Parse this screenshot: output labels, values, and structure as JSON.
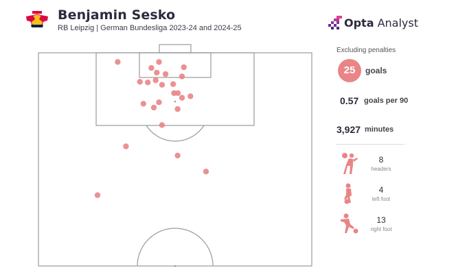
{
  "header": {
    "title": "Benjamin Sesko",
    "subtitle": "RB Leipzig | German Bundesliga 2023-24 and 2024-25",
    "brand": "Opta Analyst",
    "brand_bold": "Opta",
    "brand_rest": " Analyst"
  },
  "stats": {
    "note": "Excluding penalties",
    "goals_value": "25",
    "goals_label": "goals",
    "gp90_value": "0.57",
    "gp90_label": "goals per 90",
    "minutes_value": "3,927",
    "minutes_label": "minutes",
    "body_parts": [
      {
        "count": "8",
        "label": "headers",
        "icon": "header-icon"
      },
      {
        "count": "4",
        "label": "left foot",
        "icon": "left-foot-icon"
      },
      {
        "count": "13",
        "label": "right foot",
        "icon": "right-foot-icon"
      }
    ]
  },
  "colors": {
    "shot_marker": "#e98587",
    "accent_purple": "#6b2c91",
    "accent_pink": "#e63b8a",
    "pitch_lines": "#9a9a9a"
  },
  "chart_data": {
    "type": "scatter",
    "description_unit": "pitch coordinates: x = 0 (left touchline) to 100 (right touchline), y = distance from attacking goal line as % of half-pitch length",
    "xlim": [
      0,
      100
    ],
    "ylim": [
      0,
      100
    ],
    "x": [
      29.0,
      44.1,
      53.2,
      41.3,
      43.3,
      52.5,
      46.5,
      37.1,
      42.9,
      40.0,
      45.2,
      49.3,
      49.6,
      51.0,
      52.5,
      55.6,
      44.1,
      38.4,
      42.2,
      50.9,
      45.2,
      32.0,
      50.9,
      61.3,
      21.6
    ],
    "y": [
      4.3,
      4.3,
      6.8,
      7.1,
      9.3,
      11.1,
      10.0,
      13.6,
      12.9,
      13.9,
      15.0,
      14.7,
      18.9,
      18.9,
      21.1,
      20.4,
      23.2,
      23.9,
      25.7,
      26.4,
      33.9,
      43.9,
      48.2,
      55.7,
      66.8
    ]
  }
}
